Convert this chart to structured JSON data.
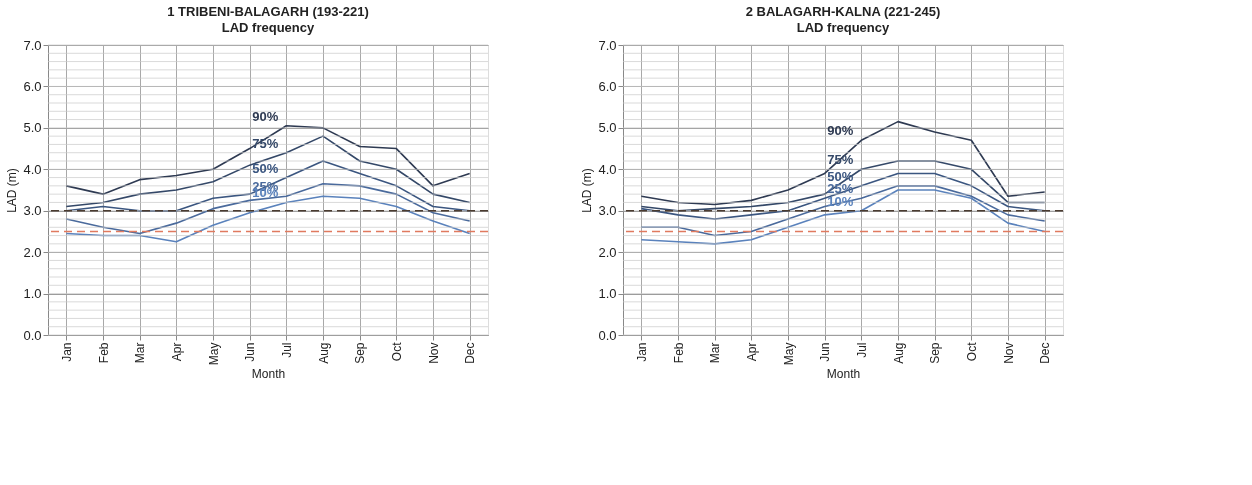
{
  "chart_data": [
    {
      "type": "line",
      "title": "1 TRIBENI-BALAGARH (193-221)",
      "subtitle": "LAD frequency",
      "xlabel": "Month",
      "ylabel": "LAD (m)",
      "categories": [
        "Jan",
        "Feb",
        "Mar",
        "Apr",
        "May",
        "Jun",
        "Jul",
        "Aug",
        "Sep",
        "Oct",
        "Nov",
        "Dec"
      ],
      "series": [
        {
          "name": "90%",
          "color": "#2e3a52",
          "values": [
            3.6,
            3.4,
            3.75,
            3.85,
            4.0,
            4.5,
            5.05,
            5.0,
            4.55,
            4.5,
            3.6,
            3.9
          ]
        },
        {
          "name": "75%",
          "color": "#344868",
          "values": [
            3.1,
            3.2,
            3.4,
            3.5,
            3.7,
            4.1,
            4.4,
            4.8,
            4.2,
            4.0,
            3.4,
            3.2
          ]
        },
        {
          "name": "50%",
          "color": "#3b5680",
          "values": [
            3.0,
            3.1,
            3.0,
            3.0,
            3.3,
            3.4,
            3.8,
            4.2,
            3.9,
            3.6,
            3.1,
            3.0
          ]
        },
        {
          "name": "25%",
          "color": "#4a6a9c",
          "values": [
            2.8,
            2.6,
            2.45,
            2.7,
            3.05,
            3.25,
            3.35,
            3.65,
            3.6,
            3.4,
            2.95,
            2.75
          ]
        },
        {
          "name": "10%",
          "color": "#5a82bc",
          "values": [
            2.45,
            2.4,
            2.4,
            2.25,
            2.65,
            2.95,
            3.2,
            3.35,
            3.3,
            3.1,
            2.75,
            2.45
          ]
        }
      ],
      "ylim": [
        0,
        7
      ],
      "yticks": [
        {
          "value": 0,
          "label": "0.0"
        },
        {
          "value": 1,
          "label": "1.0"
        },
        {
          "value": 2,
          "label": "2.0"
        },
        {
          "value": 3,
          "label": "3.0"
        },
        {
          "value": 4,
          "label": "4.0"
        },
        {
          "value": 5,
          "label": "5.0"
        },
        {
          "value": 6,
          "label": "6.0"
        },
        {
          "value": 7,
          "label": "7.0"
        }
      ],
      "ref_lines": [
        {
          "axis": "y",
          "value": 3.0,
          "color": "#4a3b30",
          "line_style": "dashed"
        },
        {
          "axis": "y",
          "value": 2.5,
          "color": "#e07a5f",
          "line_style": "dashed"
        }
      ],
      "grid": true,
      "legend": false,
      "line_style": "solid",
      "marker": "none"
    },
    {
      "type": "line",
      "title": "2 BALAGARH-KALNA (221-245)",
      "subtitle": "LAD frequency",
      "xlabel": "Month",
      "ylabel": "LAD (m)",
      "categories": [
        "Jan",
        "Feb",
        "Mar",
        "Apr",
        "May",
        "Jun",
        "Jul",
        "Aug",
        "Sep",
        "Oct",
        "Nov",
        "Dec"
      ],
      "series": [
        {
          "name": "90%",
          "color": "#2e3a52",
          "values": [
            3.35,
            3.2,
            3.15,
            3.25,
            3.5,
            3.9,
            4.7,
            5.15,
            4.9,
            4.7,
            3.35,
            3.45
          ]
        },
        {
          "name": "75%",
          "color": "#344868",
          "values": [
            3.1,
            3.0,
            3.05,
            3.1,
            3.2,
            3.4,
            4.0,
            4.2,
            4.2,
            4.0,
            3.2,
            3.2
          ]
        },
        {
          "name": "50%",
          "color": "#3b5680",
          "values": [
            3.05,
            2.9,
            2.8,
            2.9,
            3.0,
            3.3,
            3.6,
            3.9,
            3.9,
            3.6,
            3.1,
            3.0
          ]
        },
        {
          "name": "25%",
          "color": "#4a6a9c",
          "values": [
            2.6,
            2.6,
            2.4,
            2.5,
            2.8,
            3.1,
            3.3,
            3.6,
            3.6,
            3.35,
            2.9,
            2.75
          ]
        },
        {
          "name": "10%",
          "color": "#5a82bc",
          "values": [
            2.3,
            2.25,
            2.2,
            2.3,
            2.6,
            2.9,
            3.0,
            3.5,
            3.5,
            3.3,
            2.7,
            2.5
          ]
        }
      ],
      "ylim": [
        0,
        7
      ],
      "yticks": [
        {
          "value": 0,
          "label": "0.0"
        },
        {
          "value": 1,
          "label": "1.0"
        },
        {
          "value": 2,
          "label": "2.0"
        },
        {
          "value": 3,
          "label": "3.0"
        },
        {
          "value": 4,
          "label": "4.0"
        },
        {
          "value": 5,
          "label": "5.0"
        },
        {
          "value": 6,
          "label": "6.0"
        },
        {
          "value": 7,
          "label": "7.0"
        }
      ],
      "ref_lines": [
        {
          "axis": "y",
          "value": 3.0,
          "color": "#4a3b30",
          "line_style": "dashed"
        },
        {
          "axis": "y",
          "value": 2.5,
          "color": "#e07a5f",
          "line_style": "dashed"
        }
      ],
      "grid": true,
      "legend": false,
      "line_style": "solid",
      "marker": "none"
    }
  ]
}
